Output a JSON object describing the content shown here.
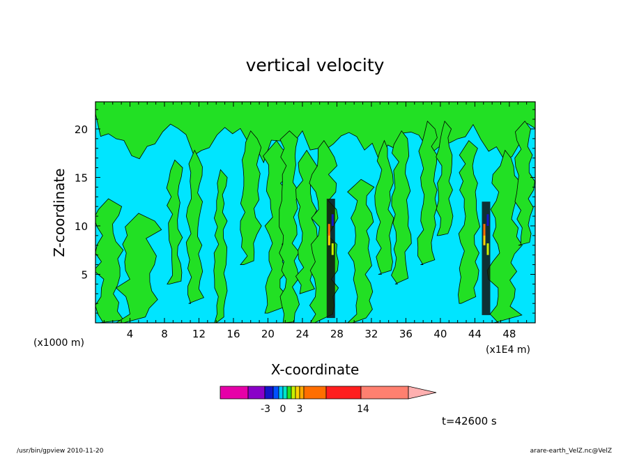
{
  "chart_data": {
    "type": "heatmap",
    "title": "vertical velocity",
    "xlabel": "X-coordinate",
    "ylabel": "Z-coordinate",
    "x_scale_label": "(x1000 m)",
    "x_multiplier_label": "(x1E4 m)",
    "x_range": [
      0,
      51
    ],
    "y_range": [
      0,
      22.8
    ],
    "x_ticks": [
      4,
      8,
      12,
      16,
      20,
      24,
      28,
      32,
      36,
      40,
      44,
      48
    ],
    "y_ticks": [
      5,
      10,
      15,
      20
    ],
    "colors": {
      "background": "#00e5ff",
      "positive_region": "#22e024",
      "contour_line": "#000000"
    },
    "colorbar": {
      "colors": [
        "#e600a8",
        "#8a00c8",
        "#1414c8",
        "#0050ff",
        "#00c8ff",
        "#00e6c8",
        "#24e024",
        "#c8f000",
        "#ffd200",
        "#ffaa00",
        "#ff6e00",
        "#ff1e1e",
        "#ff8070"
      ],
      "tick_labels": [
        "-3",
        "0",
        "3",
        "14"
      ],
      "extend": "right",
      "extend_color": "#ffb0b0"
    },
    "convective_cores": [
      {
        "x": 27.3,
        "z_bottom": 0.5,
        "z_top": 12.8
      },
      {
        "x": 45.3,
        "z_bottom": 0.8,
        "z_top": 12.5
      }
    ],
    "timestamp": "t=42600 s"
  },
  "footer": {
    "left": "/usr/bin/gpview   2010-11-20",
    "right": "arare-earth_VelZ.nc@VelZ"
  }
}
